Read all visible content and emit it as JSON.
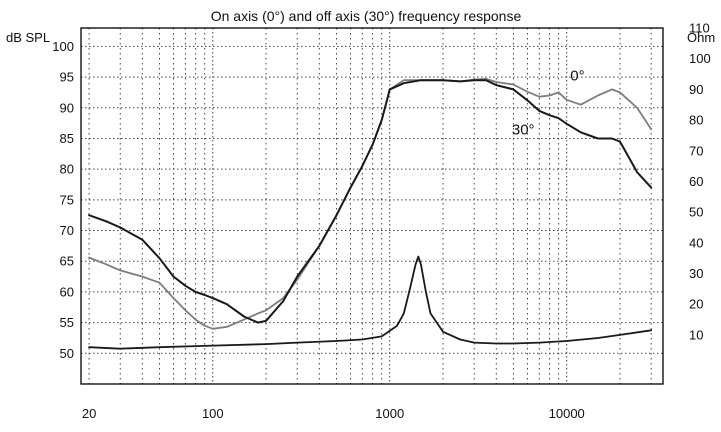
{
  "chart_data": {
    "type": "line",
    "title": "On axis (0°) and off axis (30°) frequency response",
    "xscale": "log",
    "xlim": [
      18,
      35000
    ],
    "x_ticks": [
      20,
      100,
      1000,
      10000
    ],
    "x_tick_labels": [
      "20",
      "100",
      "1000",
      "10000"
    ],
    "y_left": {
      "label": "dB SPL",
      "lim": [
        45,
        103
      ],
      "ticks": [
        50,
        55,
        60,
        65,
        70,
        75,
        80,
        85,
        90,
        95,
        100
      ],
      "tick_labels": [
        "50",
        "55",
        "60",
        "65",
        "70",
        "75",
        "80",
        "85",
        "90",
        "95",
        "100"
      ]
    },
    "y_right": {
      "label": "Ohm",
      "lim": [
        -6,
        110
      ],
      "ticks": [
        10,
        20,
        30,
        40,
        50,
        60,
        70,
        80,
        90,
        100,
        110
      ],
      "tick_labels": [
        "10",
        "20",
        "30",
        "40",
        "50",
        "60",
        "70",
        "80",
        "90",
        "100",
        "110"
      ]
    },
    "grid": true,
    "annotations": [
      {
        "text": "0°",
        "target": "on_axis"
      },
      {
        "text": "30°",
        "target": "off_axis"
      }
    ],
    "series": [
      {
        "id": "on_axis",
        "annotation": "0°",
        "axis": "left",
        "color": "#7d7d7d",
        "x": [
          20,
          25,
          30,
          40,
          50,
          60,
          70,
          80,
          90,
          100,
          120,
          150,
          180,
          200,
          250,
          300,
          400,
          500,
          600,
          700,
          800,
          900,
          1000,
          1200,
          1500,
          2000,
          2500,
          3000,
          3500,
          4000,
          5000,
          6000,
          7000,
          8000,
          9000,
          10000,
          12000,
          15000,
          18000,
          20000,
          25000,
          30000
        ],
        "y": [
          65.6,
          64.5,
          63.5,
          62.5,
          61.5,
          59,
          57,
          55.5,
          54.5,
          54,
          54.3,
          55.5,
          56.5,
          57,
          59,
          62,
          67.5,
          72.5,
          77,
          80.5,
          84,
          88,
          93,
          94.5,
          94.5,
          94.5,
          94.3,
          94.6,
          94.7,
          94.2,
          93.8,
          92.6,
          91.8,
          92,
          92.5,
          91.3,
          90.5,
          92,
          93,
          92.5,
          90,
          86.5
        ]
      },
      {
        "id": "off_axis",
        "annotation": "30°",
        "axis": "left",
        "color": "#1a1a1a",
        "x": [
          20,
          25,
          30,
          40,
          50,
          60,
          70,
          80,
          90,
          100,
          120,
          150,
          180,
          200,
          250,
          300,
          400,
          500,
          600,
          700,
          800,
          900,
          1000,
          1200,
          1500,
          2000,
          2500,
          3000,
          3500,
          4000,
          5000,
          6000,
          7000,
          8000,
          9000,
          10000,
          12000,
          15000,
          18000,
          20000,
          25000,
          30000
        ],
        "y": [
          72.5,
          71.5,
          70.5,
          68.5,
          65.5,
          62.5,
          61,
          60,
          59.5,
          59,
          58,
          56,
          55,
          55.3,
          58.5,
          62.5,
          67.5,
          72.5,
          77,
          80.5,
          84,
          88,
          93,
          94,
          94.5,
          94.5,
          94.3,
          94.5,
          94.5,
          93.7,
          93,
          91.2,
          89.5,
          88.8,
          88.3,
          87.4,
          86,
          85,
          85,
          84.5,
          79.5,
          77
        ]
      },
      {
        "id": "impedance",
        "axis": "right",
        "color": "#1a1a1a",
        "x": [
          20,
          30,
          50,
          100,
          200,
          300,
          500,
          700,
          900,
          1100,
          1200,
          1300,
          1400,
          1450,
          1500,
          1600,
          1700,
          2000,
          2500,
          3000,
          4000,
          5000,
          7000,
          10000,
          15000,
          20000,
          30000
        ],
        "y": [
          6,
          5.5,
          6,
          6.5,
          7,
          7.5,
          8,
          8.5,
          9.5,
          13,
          17,
          25,
          33,
          35.5,
          33,
          24,
          17,
          11,
          8.5,
          7.5,
          7.2,
          7.2,
          7.5,
          8,
          9,
          10,
          11.5
        ]
      }
    ]
  }
}
